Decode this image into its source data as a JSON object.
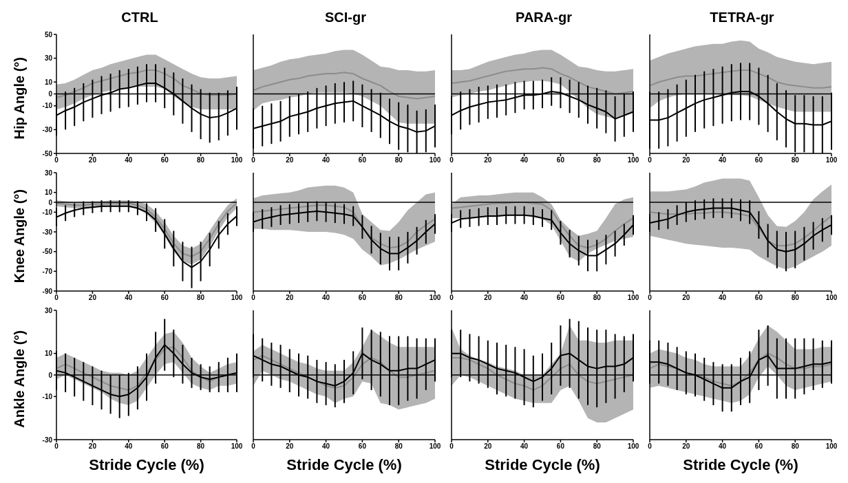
{
  "chart_data": [
    {
      "type": "line",
      "title": "CTRL",
      "ylabel": "Hip Angle (°)",
      "x": [
        0,
        5,
        10,
        15,
        20,
        25,
        30,
        35,
        40,
        45,
        50,
        55,
        60,
        65,
        70,
        75,
        80,
        85,
        90,
        95,
        100
      ],
      "xlim": [
        0,
        100
      ],
      "xticks": [
        0,
        20,
        40,
        60,
        80,
        100
      ],
      "ylim": [
        -50,
        50
      ],
      "yticks": [
        50,
        30,
        10,
        0,
        -10,
        -30,
        -50
      ],
      "ref_lines": [
        {
          "axis": "y",
          "value": 0,
          "color": "#000000"
        }
      ],
      "series": [
        {
          "color": "#8c8c8c",
          "values": [
            -3,
            -1,
            2,
            5,
            9,
            11,
            13,
            15,
            17,
            18,
            20,
            20,
            17,
            13,
            7,
            4,
            0,
            -1,
            -1,
            -1,
            0
          ],
          "lower": [
            -13,
            -11,
            -8,
            -4,
            -1,
            1,
            3,
            4,
            5,
            6,
            6,
            6,
            4,
            -2,
            -7,
            -11,
            -13,
            -13,
            -13,
            -13,
            -13
          ],
          "upper": [
            8,
            9,
            12,
            16,
            20,
            22,
            25,
            27,
            29,
            31,
            33,
            33,
            29,
            25,
            21,
            17,
            14,
            13,
            13,
            14,
            15
          ]
        },
        {
          "color": "#000000",
          "values": [
            -18,
            -14,
            -11,
            -7,
            -4,
            -1,
            1,
            4,
            5,
            7,
            9,
            9,
            5,
            0,
            -6,
            -12,
            -17,
            -20,
            -19,
            -16,
            -12
          ],
          "errors": [
            17,
            16,
            16,
            16,
            16,
            16,
            16,
            16,
            16,
            16,
            16,
            16,
            17,
            18,
            19,
            20,
            21,
            21,
            20,
            19,
            18
          ]
        }
      ]
    },
    {
      "type": "line",
      "title": "SCI-gr",
      "x": [
        0,
        5,
        10,
        15,
        20,
        25,
        30,
        35,
        40,
        45,
        50,
        55,
        60,
        65,
        70,
        75,
        80,
        85,
        90,
        95,
        100
      ],
      "xlim": [
        0,
        100
      ],
      "xticks": [
        0,
        20,
        40,
        60,
        80,
        100
      ],
      "ylim": [
        -50,
        50
      ],
      "yticks": [
        50,
        30,
        10,
        0,
        -10,
        -30,
        -50
      ],
      "tick_labels": "x",
      "ref_lines": [
        {
          "axis": "y",
          "value": 0,
          "color": "#000000"
        }
      ],
      "series": [
        {
          "color": "#8c8c8c",
          "values": [
            3,
            6,
            8,
            10,
            12,
            13,
            15,
            16,
            17,
            17,
            18,
            17,
            13,
            10,
            7,
            2,
            -2,
            -3,
            -4,
            -3,
            -2
          ],
          "lower": [
            -14,
            -8,
            -6,
            -5,
            -3,
            -2,
            0,
            1,
            1,
            1,
            1,
            0,
            -2,
            -6,
            -10,
            -17,
            -24,
            -25,
            -25,
            -25,
            -25
          ],
          "upper": [
            20,
            22,
            24,
            27,
            29,
            30,
            32,
            33,
            34,
            36,
            37,
            37,
            33,
            28,
            23,
            22,
            20,
            20,
            19,
            19,
            20
          ]
        },
        {
          "color": "#000000",
          "values": [
            -29,
            -27,
            -25,
            -23,
            -19,
            -17,
            -15,
            -12,
            -10,
            -8,
            -7,
            -6,
            -10,
            -14,
            -18,
            -23,
            -27,
            -29,
            -32,
            -31,
            -27
          ],
          "errors": [
            17,
            17,
            17,
            17,
            17,
            17,
            17,
            17,
            17,
            17,
            17,
            17,
            18,
            18,
            19,
            19,
            20,
            20,
            18,
            18,
            18
          ]
        }
      ]
    },
    {
      "type": "line",
      "title": "PARA-gr",
      "x": [
        0,
        5,
        10,
        15,
        20,
        25,
        30,
        35,
        40,
        45,
        50,
        55,
        60,
        65,
        70,
        75,
        80,
        85,
        90,
        95,
        100
      ],
      "xlim": [
        0,
        100
      ],
      "xticks": [
        0,
        20,
        40,
        60,
        80,
        100
      ],
      "ylim": [
        -50,
        50
      ],
      "yticks": [
        50,
        30,
        10,
        0,
        -10,
        -30,
        -50
      ],
      "tick_labels": "x",
      "ref_lines": [
        {
          "axis": "y",
          "value": 0,
          "color": "#000000"
        }
      ],
      "series": [
        {
          "color": "#8c8c8c",
          "values": [
            9,
            10,
            11,
            13,
            15,
            17,
            19,
            20,
            21,
            21,
            22,
            21,
            17,
            14,
            10,
            6,
            4,
            2,
            0,
            1,
            2
          ],
          "lower": [
            -3,
            -1,
            0,
            2,
            3,
            5,
            7,
            9,
            10,
            11,
            11,
            10,
            8,
            2,
            -5,
            -12,
            -17,
            -19,
            -21,
            -19,
            -16
          ],
          "upper": [
            20,
            20,
            21,
            24,
            27,
            29,
            31,
            33,
            34,
            36,
            37,
            37,
            33,
            28,
            23,
            22,
            20,
            19,
            19,
            20,
            21
          ]
        },
        {
          "color": "#000000",
          "values": [
            -18,
            -14,
            -11,
            -9,
            -7,
            -6,
            -5,
            -3,
            -1,
            -1,
            0,
            2,
            1,
            -2,
            -5,
            -9,
            -12,
            -15,
            -21,
            -18,
            -15
          ],
          "errors": [
            16,
            16,
            15,
            15,
            14,
            14,
            13,
            13,
            12,
            12,
            12,
            12,
            13,
            14,
            15,
            16,
            17,
            18,
            19,
            18,
            17
          ]
        }
      ]
    },
    {
      "type": "line",
      "title": "TETRA-gr",
      "x": [
        0,
        5,
        10,
        15,
        20,
        25,
        30,
        35,
        40,
        45,
        50,
        55,
        60,
        65,
        70,
        75,
        80,
        85,
        90,
        95,
        100
      ],
      "xlim": [
        0,
        100
      ],
      "xticks": [
        0,
        20,
        40,
        60,
        80,
        100
      ],
      "ylim": [
        -50,
        50
      ],
      "yticks": [
        50,
        30,
        10,
        0,
        -10,
        -30,
        -50
      ],
      "tick_labels": "x",
      "ref_lines": [
        {
          "axis": "y",
          "value": 0,
          "color": "#000000"
        }
      ],
      "series": [
        {
          "color": "#8c8c8c",
          "values": [
            7,
            10,
            12,
            14,
            15,
            15,
            16,
            17,
            18,
            19,
            20,
            20,
            17,
            14,
            10,
            8,
            7,
            6,
            5,
            5,
            6
          ],
          "lower": [
            -12,
            -6,
            -3,
            -1,
            0,
            0,
            0,
            0,
            -1,
            -1,
            -1,
            -2,
            -5,
            -8,
            -11,
            -13,
            -15,
            -15,
            -15,
            -15,
            -15
          ],
          "upper": [
            28,
            31,
            34,
            36,
            38,
            40,
            41,
            42,
            42,
            44,
            45,
            44,
            38,
            35,
            31,
            29,
            27,
            26,
            25,
            26,
            27
          ]
        },
        {
          "color": "#000000",
          "values": [
            -22,
            -22,
            -20,
            -16,
            -12,
            -8,
            -5,
            -3,
            -1,
            1,
            2,
            2,
            -2,
            -8,
            -15,
            -21,
            -25,
            -25,
            -26,
            -26,
            -23
          ],
          "errors": [
            24,
            24,
            24,
            24,
            24,
            24,
            24,
            24,
            24,
            24,
            24,
            24,
            24,
            24,
            24,
            24,
            24,
            24,
            24,
            24,
            24
          ]
        }
      ]
    },
    {
      "type": "line",
      "ylabel": "Knee Angle (°)",
      "x": [
        0,
        5,
        10,
        15,
        20,
        25,
        30,
        35,
        40,
        45,
        50,
        55,
        60,
        65,
        70,
        75,
        80,
        85,
        90,
        95,
        100
      ],
      "xlim": [
        0,
        100
      ],
      "xticks": [
        0,
        20,
        40,
        60,
        80,
        100
      ],
      "ylim": [
        -90,
        30
      ],
      "yticks": [
        30,
        10,
        0,
        -10,
        -30,
        -50,
        -70,
        -90
      ],
      "ref_lines": [
        {
          "axis": "y",
          "value": 0,
          "color": "#000000"
        }
      ],
      "series": [
        {
          "color": "#8c8c8c",
          "values": [
            -1,
            -2,
            -3,
            -3,
            -2,
            -2,
            -1,
            -1,
            -1,
            -3,
            -7,
            -15,
            -27,
            -42,
            -52,
            -55,
            -50,
            -37,
            -22,
            -9,
            -1
          ],
          "lower": [
            -4,
            -5,
            -6,
            -6,
            -5,
            -5,
            -4,
            -4,
            -4,
            -7,
            -12,
            -21,
            -34,
            -50,
            -60,
            -63,
            -58,
            -45,
            -29,
            -15,
            -6
          ],
          "upper": [
            2,
            1,
            0,
            0,
            1,
            1,
            2,
            2,
            2,
            1,
            -2,
            -9,
            -20,
            -34,
            -44,
            -47,
            -42,
            -29,
            -15,
            -3,
            4
          ]
        },
        {
          "color": "#000000",
          "values": [
            -15,
            -11,
            -8,
            -6,
            -5,
            -4,
            -4,
            -4,
            -4,
            -6,
            -10,
            -18,
            -32,
            -47,
            -60,
            -66,
            -60,
            -48,
            -33,
            -22,
            -14
          ],
          "errors": [
            9,
            8,
            7,
            7,
            6,
            6,
            6,
            6,
            6,
            7,
            9,
            12,
            15,
            18,
            20,
            21,
            20,
            17,
            14,
            11,
            10
          ]
        }
      ]
    },
    {
      "type": "line",
      "x": [
        0,
        5,
        10,
        15,
        20,
        25,
        30,
        35,
        40,
        45,
        50,
        55,
        60,
        65,
        70,
        75,
        80,
        85,
        90,
        95,
        100
      ],
      "xlim": [
        0,
        100
      ],
      "xticks": [
        0,
        20,
        40,
        60,
        80,
        100
      ],
      "ylim": [
        -90,
        30
      ],
      "yticks": [
        30,
        10,
        0,
        -10,
        -30,
        -50,
        -70,
        -90
      ],
      "tick_labels": "x",
      "ref_lines": [
        {
          "axis": "y",
          "value": 0,
          "color": "#000000"
        }
      ],
      "series": [
        {
          "color": "#8c8c8c",
          "values": [
            -10,
            -9,
            -8,
            -7,
            -6,
            -5,
            -4,
            -3,
            -3,
            -4,
            -5,
            -10,
            -25,
            -36,
            -42,
            -46,
            -45,
            -40,
            -30,
            -23,
            -17
          ],
          "lower": [
            -27,
            -27,
            -28,
            -28,
            -28,
            -29,
            -30,
            -30,
            -30,
            -31,
            -33,
            -37,
            -48,
            -55,
            -64,
            -62,
            -58,
            -53,
            -48,
            -44,
            -40
          ],
          "upper": [
            4,
            7,
            8,
            9,
            10,
            12,
            15,
            16,
            17,
            17,
            15,
            10,
            -12,
            -20,
            -28,
            -29,
            -20,
            -8,
            0,
            8,
            10
          ]
        },
        {
          "color": "#000000",
          "values": [
            -20,
            -17,
            -15,
            -13,
            -12,
            -11,
            -10,
            -9,
            -10,
            -11,
            -12,
            -14,
            -25,
            -38,
            -47,
            -52,
            -52,
            -46,
            -39,
            -30,
            -22
          ],
          "errors": [
            10,
            10,
            10,
            10,
            10,
            10,
            10,
            10,
            10,
            10,
            10,
            10,
            12,
            14,
            16,
            17,
            17,
            16,
            14,
            12,
            10
          ]
        }
      ]
    },
    {
      "type": "line",
      "x": [
        0,
        5,
        10,
        15,
        20,
        25,
        30,
        35,
        40,
        45,
        50,
        55,
        60,
        65,
        70,
        75,
        80,
        85,
        90,
        95,
        100
      ],
      "xlim": [
        0,
        100
      ],
      "xticks": [
        0,
        20,
        40,
        60,
        80,
        100
      ],
      "ylim": [
        -90,
        30
      ],
      "yticks": [
        30,
        10,
        0,
        -10,
        -30,
        -50,
        -70,
        -90
      ],
      "tick_labels": "x",
      "ref_lines": [
        {
          "axis": "y",
          "value": 0,
          "color": "#000000"
        }
      ],
      "series": [
        {
          "color": "#8c8c8c",
          "values": [
            -6,
            -5,
            -4,
            -3,
            -2,
            -1,
            -1,
            0,
            0,
            -1,
            -2,
            -8,
            -22,
            -34,
            -44,
            -46,
            -43,
            -37,
            -29,
            -22,
            -16
          ],
          "lower": [
            -16,
            -16,
            -16,
            -15,
            -15,
            -15,
            -14,
            -14,
            -14,
            -15,
            -17,
            -23,
            -39,
            -55,
            -60,
            -52,
            -47,
            -43,
            -39,
            -37,
            -35
          ],
          "upper": [
            -2,
            5,
            6,
            7,
            7,
            8,
            9,
            10,
            10,
            10,
            5,
            -2,
            -18,
            -27,
            -34,
            -32,
            -29,
            -16,
            -2,
            3,
            5
          ]
        },
        {
          "color": "#000000",
          "values": [
            -21,
            -17,
            -16,
            -15,
            -14,
            -14,
            -13,
            -13,
            -13,
            -14,
            -16,
            -18,
            -31,
            -42,
            -49,
            -54,
            -54,
            -48,
            -42,
            -33,
            -23
          ],
          "errors": [
            9,
            9,
            9,
            9,
            9,
            9,
            9,
            9,
            9,
            9,
            9,
            10,
            12,
            14,
            15,
            16,
            16,
            15,
            13,
            11,
            10
          ]
        }
      ]
    },
    {
      "type": "line",
      "x": [
        0,
        5,
        10,
        15,
        20,
        25,
        30,
        35,
        40,
        45,
        50,
        55,
        60,
        65,
        70,
        75,
        80,
        85,
        90,
        95,
        100
      ],
      "xlim": [
        0,
        100
      ],
      "xticks": [
        0,
        20,
        40,
        60,
        80,
        100
      ],
      "ylim": [
        -90,
        30
      ],
      "yticks": [
        30,
        10,
        0,
        -10,
        -30,
        -50,
        -70,
        -90
      ],
      "tick_labels": "x",
      "ref_lines": [
        {
          "axis": "y",
          "value": 0,
          "color": "#000000"
        }
      ],
      "series": [
        {
          "color": "#8c8c8c",
          "values": [
            -10,
            -11,
            -12,
            -12,
            -12,
            -11,
            -11,
            -10,
            -10,
            -11,
            -12,
            -14,
            -26,
            -39,
            -44,
            -44,
            -42,
            -36,
            -29,
            -21,
            -14
          ],
          "lower": [
            -34,
            -36,
            -38,
            -40,
            -42,
            -43,
            -44,
            -45,
            -46,
            -46,
            -47,
            -48,
            -55,
            -60,
            -65,
            -68,
            -65,
            -60,
            -55,
            -50,
            -44
          ],
          "upper": [
            11,
            11,
            11,
            12,
            13,
            16,
            20,
            22,
            24,
            24,
            24,
            22,
            5,
            -13,
            -24,
            -25,
            -19,
            -10,
            3,
            11,
            18
          ]
        },
        {
          "color": "#000000",
          "values": [
            -21,
            -19,
            -17,
            -13,
            -10,
            -8,
            -7,
            -6,
            -6,
            -6,
            -8,
            -10,
            -23,
            -39,
            -48,
            -50,
            -48,
            -42,
            -34,
            -28,
            -23
          ],
          "errors": [
            9,
            9,
            10,
            10,
            10,
            10,
            10,
            10,
            10,
            10,
            11,
            12,
            14,
            17,
            19,
            20,
            19,
            17,
            14,
            12,
            10
          ]
        }
      ]
    },
    {
      "type": "line",
      "ylabel": "Ankle Angle (°)",
      "xlabel": "Stride Cycle (%)",
      "x": [
        0,
        5,
        10,
        15,
        20,
        25,
        30,
        35,
        40,
        45,
        50,
        55,
        60,
        65,
        70,
        75,
        80,
        85,
        90,
        95,
        100
      ],
      "xlim": [
        0,
        100
      ],
      "xticks": [
        0,
        20,
        40,
        60,
        80,
        100
      ],
      "ylim": [
        -30,
        30
      ],
      "yticks": [
        30,
        10,
        0,
        -10,
        -30
      ],
      "ref_lines": [
        {
          "axis": "y",
          "value": 0,
          "color": "#000000"
        }
      ],
      "series": [
        {
          "color": "#8c8c8c",
          "values": [
            3,
            5,
            3,
            1,
            -1,
            -3,
            -5,
            -6,
            -7,
            -5,
            1,
            7,
            12,
            13,
            8,
            2,
            -1,
            -3,
            -1,
            0,
            1
          ],
          "lower": [
            -2,
            0,
            -2,
            -4,
            -6,
            -8,
            -11,
            -13,
            -14,
            -12,
            -6,
            0,
            5,
            6,
            1,
            -4,
            -6,
            -7,
            -5,
            -5,
            -4
          ],
          "upper": [
            8,
            10,
            8,
            6,
            4,
            2,
            1,
            1,
            0,
            2,
            8,
            14,
            19,
            20,
            15,
            8,
            4,
            1,
            3,
            5,
            6
          ]
        },
        {
          "color": "#000000",
          "values": [
            2,
            1,
            -1,
            -3,
            -5,
            -7,
            -9,
            -10,
            -9,
            -6,
            -1,
            8,
            14,
            10,
            5,
            1,
            -1,
            -2,
            -1,
            0,
            1
          ],
          "errors": [
            9,
            9,
            9,
            9,
            9,
            9,
            9,
            10,
            10,
            10,
            11,
            12,
            12,
            11,
            9,
            7,
            6,
            6,
            7,
            8,
            9
          ]
        }
      ]
    },
    {
      "type": "line",
      "xlabel": "Stride Cycle (%)",
      "x": [
        0,
        5,
        10,
        15,
        20,
        25,
        30,
        35,
        40,
        45,
        50,
        55,
        60,
        65,
        70,
        75,
        80,
        85,
        90,
        95,
        100
      ],
      "xlim": [
        0,
        100
      ],
      "xticks": [
        0,
        20,
        40,
        60,
        80,
        100
      ],
      "ylim": [
        -30,
        30
      ],
      "yticks": [
        30,
        10,
        0,
        -10,
        -30
      ],
      "tick_labels": "x",
      "ref_lines": [
        {
          "axis": "y",
          "value": 0,
          "color": "#000000"
        }
      ],
      "series": [
        {
          "color": "#8c8c8c",
          "values": [
            7,
            9,
            7,
            5,
            3,
            1,
            -1,
            -3,
            -5,
            -6,
            -5,
            -1,
            5,
            8,
            6,
            2,
            -1,
            -1,
            0,
            1,
            2
          ],
          "lower": [
            -5,
            2,
            0,
            -2,
            -3,
            -5,
            -7,
            -9,
            -10,
            -13,
            -11,
            -10,
            -3,
            -4,
            -13,
            -14,
            -16,
            -15,
            -14,
            -13,
            -11
          ],
          "upper": [
            11,
            14,
            12,
            10,
            8,
            6,
            5,
            3,
            2,
            2,
            2,
            6,
            13,
            21,
            18,
            15,
            13,
            13,
            13,
            13,
            13
          ]
        },
        {
          "color": "#000000",
          "values": [
            9,
            7,
            5,
            4,
            2,
            0,
            -1,
            -3,
            -4,
            -5,
            -3,
            1,
            10,
            7,
            5,
            2,
            2,
            3,
            3,
            5,
            7
          ],
          "errors": [
            10,
            10,
            10,
            10,
            10,
            10,
            10,
            10,
            10,
            10,
            10,
            10,
            12,
            14,
            15,
            16,
            16,
            15,
            14,
            12,
            10
          ]
        }
      ]
    },
    {
      "type": "line",
      "xlabel": "Stride Cycle (%)",
      "x": [
        0,
        5,
        10,
        15,
        20,
        25,
        30,
        35,
        40,
        45,
        50,
        55,
        60,
        65,
        70,
        75,
        80,
        85,
        90,
        95,
        100
      ],
      "xlim": [
        0,
        100
      ],
      "xticks": [
        0,
        20,
        40,
        60,
        80,
        100
      ],
      "ylim": [
        -30,
        30
      ],
      "yticks": [
        30,
        10,
        0,
        -10,
        -30
      ],
      "tick_labels": "x",
      "ref_lines": [
        {
          "axis": "y",
          "value": 0,
          "color": "#000000"
        }
      ],
      "series": [
        {
          "color": "#8c8c8c",
          "values": [
            8,
            8,
            7,
            5,
            3,
            0,
            -2,
            -4,
            -5,
            -7,
            -5,
            -1,
            3,
            5,
            0,
            -3,
            -4,
            -3,
            -2,
            -1,
            0
          ],
          "lower": [
            -5,
            0,
            -1,
            -3,
            -5,
            -7,
            -9,
            -11,
            -12,
            -13,
            -13,
            -13,
            -7,
            -5,
            -12,
            -20,
            -22,
            -22,
            -20,
            -18,
            -16
          ],
          "upper": [
            22,
            12,
            9,
            7,
            6,
            4,
            3,
            2,
            0,
            0,
            0,
            5,
            10,
            23,
            16,
            16,
            15,
            15,
            16,
            16,
            16
          ]
        },
        {
          "color": "#000000",
          "values": [
            10,
            10,
            8,
            7,
            5,
            3,
            2,
            1,
            -1,
            -3,
            -1,
            3,
            9,
            10,
            7,
            4,
            3,
            4,
            4,
            5,
            8
          ],
          "errors": [
            11,
            11,
            11,
            11,
            11,
            12,
            12,
            12,
            13,
            12,
            11,
            12,
            14,
            16,
            18,
            18,
            18,
            17,
            15,
            13,
            11
          ]
        }
      ]
    },
    {
      "type": "line",
      "xlabel": "Stride Cycle (%)",
      "x": [
        0,
        5,
        10,
        15,
        20,
        25,
        30,
        35,
        40,
        45,
        50,
        55,
        60,
        65,
        70,
        75,
        80,
        85,
        90,
        95,
        100
      ],
      "xlim": [
        0,
        100
      ],
      "xticks": [
        0,
        20,
        40,
        60,
        80,
        100
      ],
      "ylim": [
        -30,
        30
      ],
      "yticks": [
        30,
        10,
        0,
        -10,
        -30
      ],
      "tick_labels": "x",
      "ref_lines": [
        {
          "axis": "y",
          "value": 0,
          "color": "#000000"
        }
      ],
      "series": [
        {
          "color": "#8c8c8c",
          "values": [
            3,
            5,
            4,
            3,
            1,
            0,
            -1,
            -3,
            -4,
            -5,
            -3,
            1,
            7,
            10,
            8,
            5,
            3,
            3,
            4,
            4,
            5
          ],
          "lower": [
            -6,
            -5,
            -6,
            -7,
            -8,
            -9,
            -10,
            -11,
            -12,
            -13,
            -12,
            -9,
            -1,
            4,
            0,
            -5,
            -7,
            -6,
            -5,
            -4,
            -3
          ],
          "upper": [
            10,
            12,
            11,
            10,
            8,
            7,
            5,
            4,
            4,
            4,
            4,
            9,
            17,
            23,
            20,
            16,
            12,
            12,
            12,
            13,
            13
          ]
        },
        {
          "color": "#000000",
          "values": [
            6,
            6,
            5,
            3,
            1,
            0,
            -2,
            -4,
            -6,
            -6,
            -3,
            -1,
            7,
            9,
            3,
            3,
            3,
            4,
            5,
            5,
            6
          ],
          "errors": [
            10,
            10,
            10,
            10,
            10,
            10,
            10,
            10,
            11,
            11,
            11,
            12,
            14,
            14,
            14,
            14,
            14,
            13,
            12,
            11,
            10
          ]
        }
      ]
    }
  ]
}
